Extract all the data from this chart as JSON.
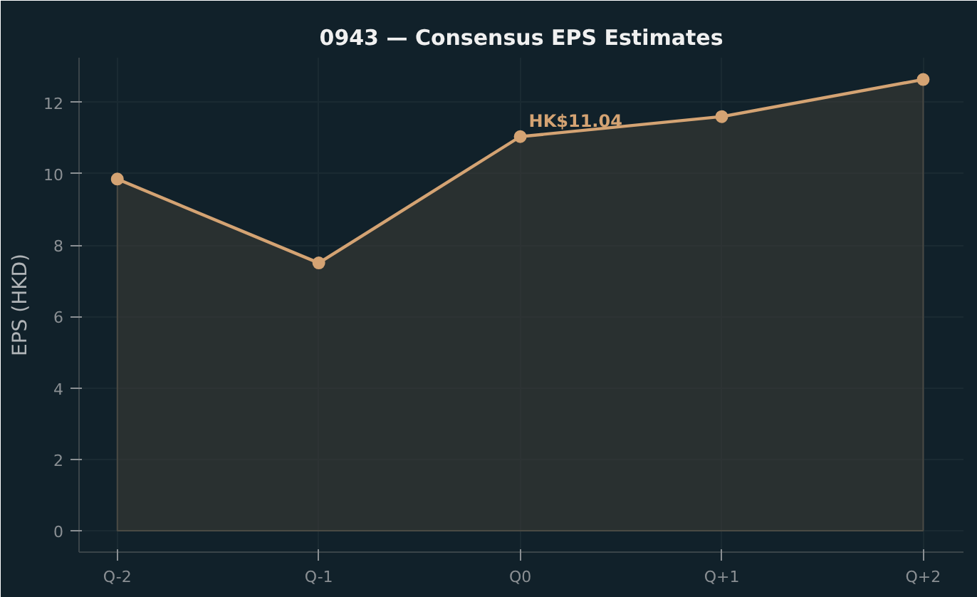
{
  "chart_data": {
    "type": "area",
    "title": "0943 — Consensus EPS Estimates",
    "ylabel": "EPS (HKD)",
    "categories": [
      "Q-2",
      "Q-1",
      "Q0",
      "Q+1",
      "Q+2"
    ],
    "series": [
      {
        "color": "#d4a373",
        "values": [
          9.85,
          7.5,
          11.04,
          11.6,
          12.64
        ]
      }
    ],
    "ylim": [
      -0.6,
      13.25
    ],
    "yticks": [
      0,
      2,
      4,
      6,
      8,
      10,
      12
    ],
    "annotations": [
      {
        "text": "HK$11.04",
        "x": "Q0",
        "y": 11.04
      }
    ],
    "grid": true,
    "marker": "circle",
    "line_style": "solid"
  }
}
